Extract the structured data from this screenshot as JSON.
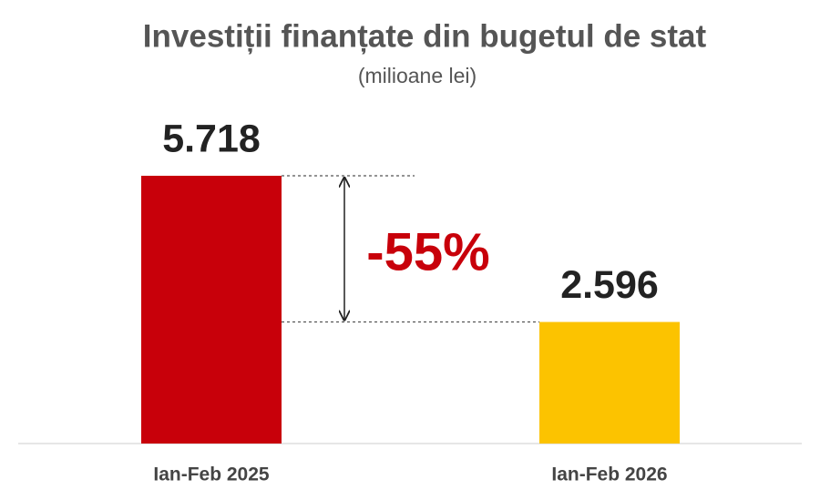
{
  "chart_data": {
    "type": "bar",
    "title": "Investiții finanțate din bugetul de stat",
    "subtitle": "(milioane lei)",
    "categories": [
      "Ian-Feb 2025",
      "Ian-Feb 2026"
    ],
    "values": [
      5718,
      2596
    ],
    "value_labels": [
      "5.718",
      "2.596"
    ],
    "colors": [
      "#c8000a",
      "#fcc300"
    ],
    "annotations": [
      "-55%"
    ]
  }
}
